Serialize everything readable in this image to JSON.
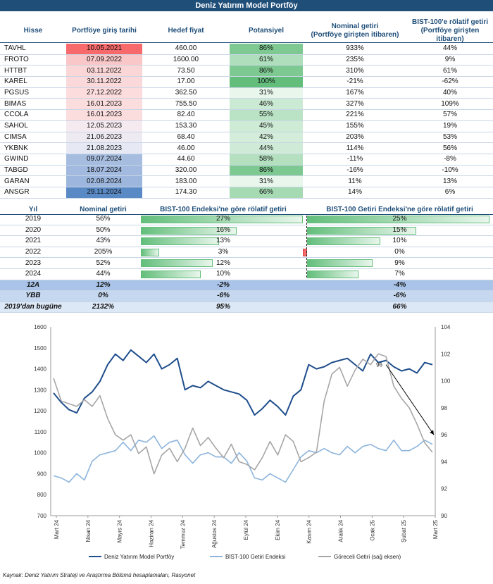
{
  "title": "Deniz Yatırım Model Portföy",
  "portfolio_table": {
    "headers": [
      "Hisse",
      "Portföye giriş tarihi",
      "Hedef fiyat",
      "Potansiyel",
      "Nominal getiri\n(Portföye girişten itibaren)",
      "BIST-100'e rölatif getiri\n(Portföye girişten itibaren)"
    ],
    "rows": [
      {
        "stock": "TAVHL",
        "date": "10.05.2021",
        "target": "460.00",
        "potential": "86%",
        "potential_value": 86,
        "nominal": "933%",
        "relative": "44%",
        "date_color": "#f8696b"
      },
      {
        "stock": "FROTO",
        "date": "07.09.2022",
        "target": "1600.00",
        "potential": "61%",
        "potential_value": 61,
        "nominal": "235%",
        "relative": "9%",
        "date_color": "#fac7c8"
      },
      {
        "stock": "HTTBT",
        "date": "03.11.2022",
        "target": "73.50",
        "potential": "86%",
        "potential_value": 86,
        "nominal": "310%",
        "relative": "61%",
        "date_color": "#fbd6d6"
      },
      {
        "stock": "KAREL",
        "date": "30.11.2022",
        "target": "17.00",
        "potential": "100%",
        "potential_value": 100,
        "nominal": "-21%",
        "relative": "-62%",
        "date_color": "#fbd9da"
      },
      {
        "stock": "PGSUS",
        "date": "27.12.2022",
        "target": "362.50",
        "potential": "31%",
        "potential_value": 31,
        "nominal": "167%",
        "relative": "40%",
        "date_color": "#fcdcdd"
      },
      {
        "stock": "BIMAS",
        "date": "16.01.2023",
        "target": "755.50",
        "potential": "46%",
        "potential_value": 46,
        "nominal": "327%",
        "relative": "109%",
        "date_color": "#fcdddd"
      },
      {
        "stock": "CCOLA",
        "date": "16.01.2023",
        "target": "82.40",
        "potential": "55%",
        "potential_value": 55,
        "nominal": "221%",
        "relative": "57%",
        "date_color": "#fcdddd"
      },
      {
        "stock": "SAHOL",
        "date": "12.05.2023",
        "target": "153.30",
        "potential": "45%",
        "potential_value": 45,
        "nominal": "155%",
        "relative": "19%",
        "date_color": "#f4eaf0"
      },
      {
        "stock": "CIMSA",
        "date": "21.06.2023",
        "target": "68.40",
        "potential": "42%",
        "potential_value": 42,
        "nominal": "203%",
        "relative": "53%",
        "date_color": "#eeeaf2"
      },
      {
        "stock": "YKBNK",
        "date": "21.08.2023",
        "target": "46.00",
        "potential": "44%",
        "potential_value": 44,
        "nominal": "114%",
        "relative": "56%",
        "date_color": "#e6e9f4"
      },
      {
        "stock": "GWIND",
        "date": "09.07.2024",
        "target": "44.60",
        "potential": "58%",
        "potential_value": 58,
        "nominal": "-11%",
        "relative": "-8%",
        "date_color": "#a6bde0"
      },
      {
        "stock": "TABGD",
        "date": "18.07.2024",
        "target": "320.00",
        "potential": "86%",
        "potential_value": 86,
        "nominal": "-16%",
        "relative": "-10%",
        "date_color": "#a2badf"
      },
      {
        "stock": "GARAN",
        "date": "02.08.2024",
        "target": "183.00",
        "potential": "31%",
        "potential_value": 31,
        "nominal": "11%",
        "relative": "13%",
        "date_color": "#9db6dd"
      },
      {
        "stock": "ANSGR",
        "date": "29.11.2024",
        "target": "174.30",
        "potential": "66%",
        "potential_value": 66,
        "nominal": "14%",
        "relative": "6%",
        "date_color": "#5a8ac6"
      }
    ]
  },
  "yearly_table": {
    "headers": [
      "Yıl",
      "Nominal getiri",
      "BIST-100 Endeksi'ne göre rölatif getiri",
      "BIST-100 Getiri Endeksi'ne göre rölatif getiri"
    ],
    "rows": [
      {
        "year": "2019",
        "nominal": "56%",
        "rel1": "27%",
        "rel1_value": 27,
        "rel2": "25%",
        "rel2_value": 25
      },
      {
        "year": "2020",
        "nominal": "50%",
        "rel1": "16%",
        "rel1_value": 16,
        "rel2": "15%",
        "rel2_value": 15
      },
      {
        "year": "2021",
        "nominal": "43%",
        "rel1": "13%",
        "rel1_value": 13,
        "rel2": "10%",
        "rel2_value": 10
      },
      {
        "year": "2022",
        "nominal": "205%",
        "rel1": "3%",
        "rel1_value": 3,
        "rel2": "0%",
        "rel2_value": -0.5
      },
      {
        "year": "2023",
        "nominal": "52%",
        "rel1": "12%",
        "rel1_value": 12,
        "rel2": "9%",
        "rel2_value": 9
      },
      {
        "year": "2024",
        "nominal": "44%",
        "rel1": "10%",
        "rel1_value": 10,
        "rel2": "7%",
        "rel2_value": 7
      }
    ],
    "summary": [
      {
        "label": "12A",
        "nominal": "12%",
        "rel1": "-2%",
        "rel2": "-4%",
        "bg": "#a9c4e8"
      },
      {
        "label": "YBB",
        "nominal": "0%",
        "rel1": "-6%",
        "rel2": "-6%",
        "bg": "#c6d8ef"
      },
      {
        "label": "2019'dan bugüne",
        "nominal": "2132%",
        "rel1": "95%",
        "rel2": "66%",
        "bg": "#dde8f6"
      }
    ]
  },
  "chart_data": {
    "type": "line",
    "left_axis": {
      "min": 700,
      "max": 1600,
      "ticks": [
        700,
        800,
        900,
        1000,
        1100,
        1200,
        1300,
        1400,
        1500,
        1600
      ]
    },
    "right_axis": {
      "min": 90,
      "max": 104,
      "ticks": [
        90,
        92,
        94,
        96,
        98,
        100,
        102,
        104
      ]
    },
    "x_labels": [
      "Mart 24",
      "Nisan 24",
      "Mayıs 24",
      "Haziran 24",
      "Temmuz 24",
      "Ağustos 24",
      "Eylül 24",
      "Ekim 24",
      "Kasım 24",
      "Aralık 24",
      "Ocak 25",
      "Şubat 25",
      "Mart 25"
    ],
    "annotation": "96",
    "series": [
      {
        "name": "Deniz Yatırım Model Portföy",
        "axis": "left",
        "color": "#1f4e8c",
        "values": [
          1285,
          1240,
          1205,
          1190,
          1260,
          1290,
          1340,
          1420,
          1470,
          1440,
          1490,
          1460,
          1430,
          1470,
          1400,
          1420,
          1450,
          1300,
          1320,
          1310,
          1340,
          1320,
          1300,
          1290,
          1280,
          1250,
          1180,
          1210,
          1250,
          1220,
          1180,
          1270,
          1300,
          1420,
          1400,
          1410,
          1430,
          1440,
          1450,
          1420,
          1390,
          1470,
          1430,
          1440,
          1410,
          1390,
          1400,
          1380,
          1430,
          1420
        ]
      },
      {
        "name": "BİST-100 Getiri Endeksi",
        "axis": "left",
        "color": "#8db4dc",
        "values": [
          890,
          880,
          860,
          900,
          870,
          960,
          990,
          1000,
          1010,
          1050,
          1010,
          1060,
          1050,
          1080,
          1020,
          1050,
          1060,
          990,
          950,
          990,
          1000,
          980,
          980,
          950,
          1000,
          960,
          880,
          870,
          900,
          880,
          860,
          920,
          980,
          1010,
          1000,
          1020,
          1000,
          990,
          1030,
          1000,
          1030,
          1040,
          1020,
          1010,
          1060,
          1010,
          1010,
          1030,
          1060,
          1040
        ]
      },
      {
        "name": "Göreceli Getiri (sağ eksen)",
        "axis": "right",
        "color": "#a6a6a6",
        "values": [
          100.2,
          98.5,
          98.3,
          98.1,
          98.6,
          98.1,
          98.9,
          97.2,
          96.0,
          95.6,
          96.0,
          94.6,
          95.1,
          93.1,
          94.5,
          95.0,
          94.0,
          95.0,
          96.5,
          95.2,
          95.8,
          95.0,
          94.3,
          95.3,
          94.0,
          93.8,
          93.4,
          94.3,
          95.5,
          94.5,
          96.0,
          95.5,
          94.0,
          94.3,
          94.7,
          98.5,
          100.5,
          101.0,
          99.6,
          100.8,
          101.6,
          101.2,
          102.0,
          101.8,
          99.6,
          98.7,
          98.0,
          96.8,
          95.4,
          94.7
        ]
      }
    ],
    "legend": [
      "Deniz Yatırım Model Portföy",
      "BİST-100 Getiri Endeksi",
      "Göreceli Getiri (sağ eksen)"
    ]
  },
  "source": "Kaynak: Deniz Yatırım Strateji ve Araştırma Bölümü hesaplamaları, Rasyonet"
}
